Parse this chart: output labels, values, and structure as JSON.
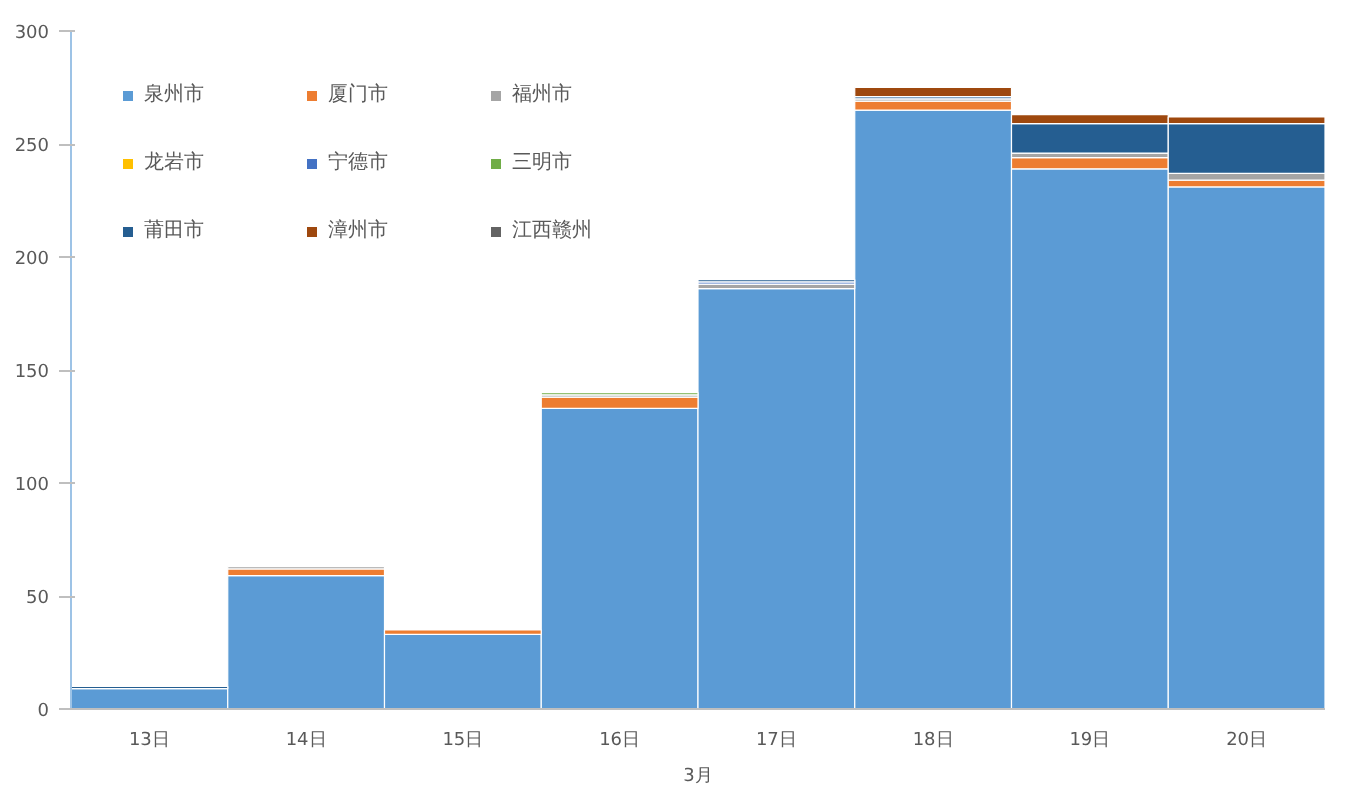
{
  "chart_data": {
    "type": "bar",
    "stacked": true,
    "categories": [
      "13日",
      "14日",
      "15日",
      "16日",
      "17日",
      "18日",
      "19日",
      "20日"
    ],
    "xlabel": "3月",
    "ylim": [
      0,
      300
    ],
    "yticks": [
      0,
      50,
      100,
      150,
      200,
      250,
      300
    ],
    "grid": false,
    "legend": "top left",
    "series": [
      {
        "name": "泉州市",
        "color": "#5b9bd5",
        "values": [
          9,
          59,
          33,
          133,
          186,
          265,
          239,
          231
        ]
      },
      {
        "name": "厦门市",
        "color": "#ed7d31",
        "values": [
          null,
          3,
          2,
          5,
          null,
          4,
          5,
          3
        ]
      },
      {
        "name": "福州市",
        "color": "#a5a5a5",
        "values": [
          null,
          1,
          null,
          1,
          2,
          1,
          2,
          3
        ]
      },
      {
        "name": "龙岩市",
        "color": "#ffc000",
        "values": [
          null,
          null,
          null,
          null,
          null,
          null,
          null,
          null
        ]
      },
      {
        "name": "宁德市",
        "color": "#4472c4",
        "values": [
          null,
          null,
          null,
          null,
          1,
          null,
          null,
          null
        ]
      },
      {
        "name": "三明市",
        "color": "#70ad47",
        "values": [
          null,
          null,
          null,
          1,
          null,
          null,
          null,
          null
        ]
      },
      {
        "name": "莆田市",
        "color": "#255e91",
        "values": [
          1,
          null,
          null,
          null,
          1,
          1,
          13,
          22
        ]
      },
      {
        "name": "漳州市",
        "color": "#9e480e",
        "values": [
          null,
          null,
          null,
          null,
          null,
          4,
          4,
          3
        ]
      },
      {
        "name": "江西赣州",
        "color": "#636363",
        "values": [
          null,
          null,
          null,
          null,
          null,
          null,
          null,
          null
        ]
      }
    ]
  }
}
